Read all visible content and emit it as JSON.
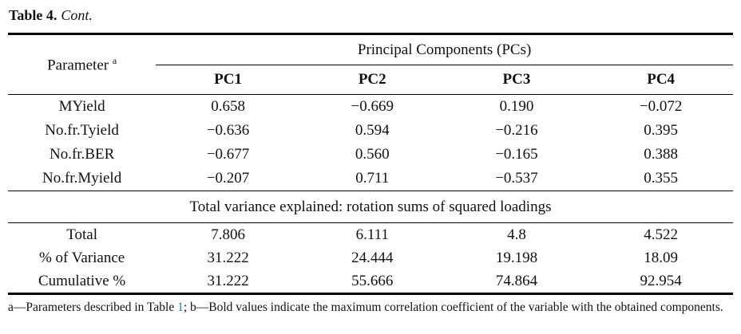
{
  "page": {
    "caption_label": "Table 4.",
    "caption_cont": "Cont."
  },
  "table": {
    "header": {
      "parameter_label": "Parameter",
      "parameter_superscript": "a",
      "group_label": "Principal Components (PCs)",
      "pc_columns": [
        "PC1",
        "PC2",
        "PC3",
        "PC4"
      ]
    },
    "loadings": [
      {
        "parameter": "MYield",
        "values": [
          {
            "v": "0.658",
            "bold": false
          },
          {
            "v": "−0.669",
            "bold": true
          },
          {
            "v": "0.190",
            "bold": false
          },
          {
            "v": "−0.072",
            "bold": false
          }
        ]
      },
      {
        "parameter": "No.fr.Tyield",
        "values": [
          {
            "v": "−0.636",
            "bold": true
          },
          {
            "v": "0.594",
            "bold": false
          },
          {
            "v": "−0.216",
            "bold": false
          },
          {
            "v": "0.395",
            "bold": false
          }
        ]
      },
      {
        "parameter": "No.fr.BER",
        "values": [
          {
            "v": "−0.677",
            "bold": true
          },
          {
            "v": "0.560",
            "bold": false
          },
          {
            "v": "−0.165",
            "bold": false
          },
          {
            "v": "0.388",
            "bold": false
          }
        ]
      },
      {
        "parameter": "No.fr.Myield",
        "values": [
          {
            "v": "−0.207",
            "bold": false
          },
          {
            "v": "0.711",
            "bold": true
          },
          {
            "v": "−0.537",
            "bold": false
          },
          {
            "v": "0.355",
            "bold": false
          }
        ]
      }
    ],
    "section_divider": "Total variance explained: rotation sums of squared loadings",
    "variance_rows": [
      {
        "label": "Total",
        "values": [
          "7.806",
          "6.111",
          "4.8",
          "4.522"
        ]
      },
      {
        "label": "% of Variance",
        "values": [
          "31.222",
          "24.444",
          "19.198",
          "18.09"
        ]
      },
      {
        "label": "Cumulative %",
        "values": [
          "31.222",
          "55.666",
          "74.864",
          "92.954"
        ]
      }
    ]
  },
  "footnote": {
    "prefix": "a—Parameters described in Table ",
    "link_text": "1",
    "suffix": "; b—Bold values indicate the maximum correlation coefficient of the variable with the obtained components.",
    "link_color": "#2e7fad"
  }
}
